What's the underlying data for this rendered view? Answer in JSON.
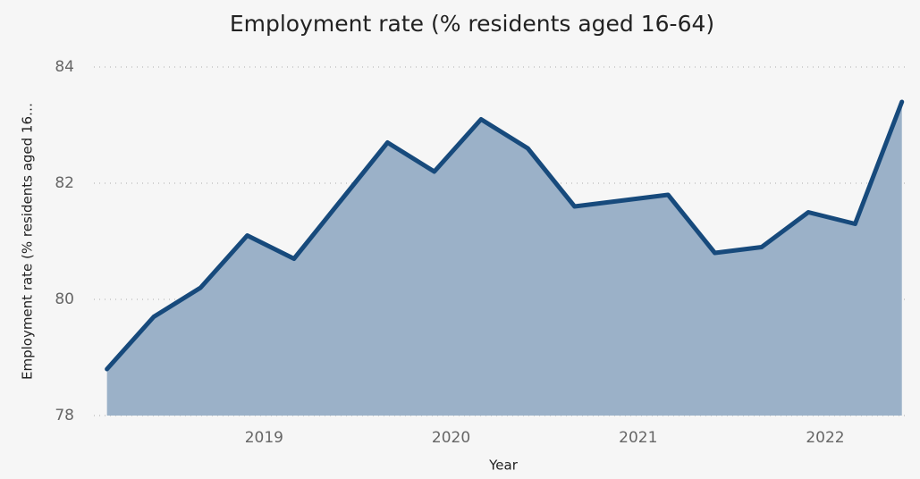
{
  "chart_data": {
    "type": "area",
    "title": "Employment rate (% residents aged 16-64)",
    "x_label": "Year",
    "y_label": "Employment rate (% residents aged 16…",
    "x": [
      2018.16,
      2018.41,
      2018.66,
      2018.91,
      2019.16,
      2019.41,
      2019.66,
      2019.91,
      2020.16,
      2020.41,
      2020.66,
      2020.91,
      2021.16,
      2021.41,
      2021.66,
      2021.91,
      2022.16,
      2022.41
    ],
    "series": [
      {
        "name": "Employment rate (% residents aged 16-64)",
        "color": "#174a7c",
        "fill": "#9bb1c8",
        "values": [
          78.8,
          79.7,
          80.2,
          81.1,
          80.7,
          81.7,
          82.7,
          82.2,
          83.1,
          82.6,
          81.6,
          81.7,
          81.8,
          80.8,
          80.9,
          81.5,
          81.3,
          83.4
        ]
      }
    ],
    "xlim": [
      2018.09,
      2022.44
    ],
    "xticks": [
      2019,
      2020,
      2021,
      2022
    ],
    "ylim": [
      78,
      84
    ],
    "yticks": [
      78,
      80,
      82,
      84
    ],
    "grid": true
  }
}
